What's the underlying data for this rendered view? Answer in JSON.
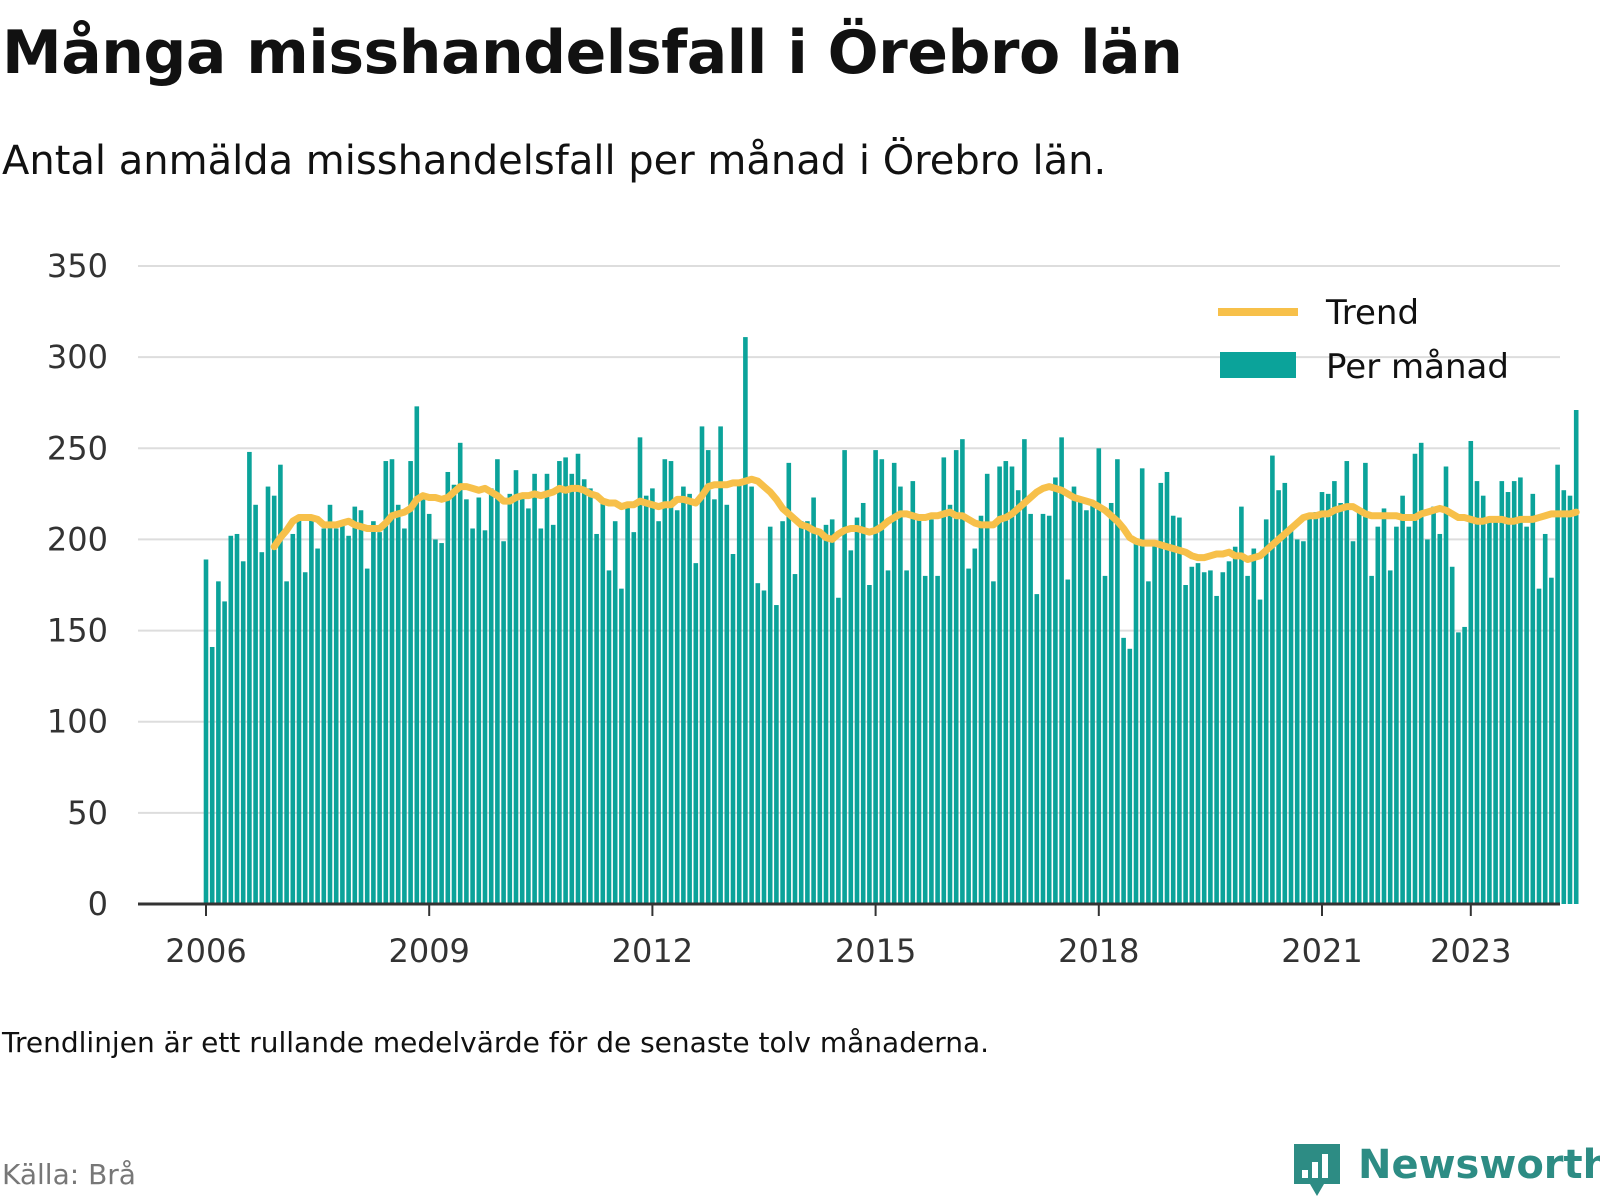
{
  "header": {
    "title": "Många misshandelsfall i Örebro län",
    "subtitle": "Antal anmälda misshandelsfall per månad i Örebro län."
  },
  "footer": {
    "note": "Trendlinjen är ett rullande medelvärde för de senaste tolv månaderna.",
    "source": "Källa: Brå",
    "brand": "Newsworthy"
  },
  "colors": {
    "bar": "#0ba39a",
    "trend": "#f7c04a",
    "grid": "#dddddd",
    "axis": "#333333",
    "brand": "#2d8c84"
  },
  "chart_data": {
    "type": "bar",
    "title": "Många misshandelsfall i Örebro län",
    "subtitle": "Antal anmälda misshandelsfall per månad i Örebro län.",
    "xlabel": "",
    "ylabel": "",
    "start_month": "2006-01",
    "ylim": [
      0,
      350
    ],
    "yticks": [
      0,
      50,
      100,
      150,
      200,
      250,
      300,
      350
    ],
    "xticks": [
      "2006",
      "2009",
      "2012",
      "2015",
      "2018",
      "2021",
      "2023"
    ],
    "grid": true,
    "legend_position": "top-right",
    "series": [
      {
        "name": "Per månad",
        "kind": "bar",
        "values": [
          189,
          141,
          177,
          166,
          202,
          203,
          188,
          248,
          219,
          193,
          229,
          224,
          241,
          177,
          203,
          212,
          182,
          211,
          195,
          206,
          219,
          206,
          208,
          202,
          218,
          216,
          184,
          210,
          204,
          243,
          244,
          219,
          206,
          243,
          273,
          225,
          214,
          200,
          198,
          237,
          230,
          253,
          222,
          206,
          223,
          205,
          228,
          244,
          199,
          225,
          238,
          224,
          217,
          236,
          206,
          236,
          208,
          243,
          245,
          236,
          247,
          233,
          228,
          203,
          222,
          183,
          210,
          173,
          220,
          204,
          256,
          224,
          228,
          210,
          244,
          243,
          216,
          229,
          225,
          187,
          262,
          249,
          222,
          262,
          219,
          192,
          232,
          311,
          229,
          176,
          172,
          207,
          164,
          210,
          242,
          181,
          210,
          210,
          223,
          205,
          208,
          211,
          168,
          249,
          194,
          212,
          220,
          175,
          249,
          244,
          183,
          242,
          229,
          183,
          232,
          211,
          180,
          211,
          180,
          245,
          219,
          249,
          255,
          184,
          195,
          213,
          236,
          177,
          240,
          243,
          240,
          227,
          255,
          214,
          170,
          214,
          213,
          234,
          256,
          178,
          229,
          221,
          216,
          219,
          250,
          180,
          220,
          244,
          146,
          140,
          198,
          239,
          177,
          199,
          231,
          237,
          213,
          212,
          175,
          185,
          187,
          182,
          183,
          169,
          182,
          188,
          196,
          218,
          180,
          195,
          167,
          211,
          246,
          227,
          231,
          205,
          200,
          199,
          212,
          215,
          226,
          225,
          232,
          220,
          243,
          199,
          216,
          242,
          180,
          207,
          217,
          183,
          207,
          224,
          207,
          247,
          253,
          200,
          218,
          203,
          240,
          185,
          149,
          152,
          254,
          232,
          224,
          211,
          212,
          232,
          226,
          232,
          234,
          207,
          225,
          173,
          203,
          179,
          241,
          227,
          224,
          271
        ]
      },
      {
        "name": "Trend",
        "kind": "line",
        "values": [
          null,
          null,
          null,
          null,
          null,
          null,
          null,
          null,
          null,
          null,
          null,
          196,
          201,
          205,
          210,
          212,
          212,
          212,
          211,
          208,
          208,
          208,
          209,
          210,
          208,
          207,
          206,
          206,
          206,
          209,
          213,
          214,
          215,
          217,
          222,
          224,
          223,
          223,
          222,
          223,
          226,
          229,
          229,
          228,
          227,
          228,
          226,
          224,
          221,
          221,
          223,
          224,
          224,
          225,
          224,
          225,
          226,
          228,
          227,
          228,
          228,
          227,
          225,
          224,
          221,
          220,
          220,
          218,
          219,
          219,
          221,
          220,
          219,
          218,
          219,
          219,
          222,
          222,
          221,
          220,
          224,
          229,
          230,
          230,
          230,
          231,
          231,
          232,
          233,
          232,
          229,
          226,
          222,
          217,
          214,
          211,
          208,
          207,
          205,
          204,
          201,
          200,
          203,
          205,
          206,
          206,
          205,
          204,
          205,
          207,
          210,
          212,
          214,
          214,
          213,
          212,
          212,
          213,
          213,
          214,
          215,
          213,
          213,
          211,
          209,
          208,
          208,
          208,
          211,
          212,
          214,
          217,
          220,
          223,
          226,
          228,
          229,
          228,
          227,
          225,
          223,
          222,
          221,
          220,
          218,
          216,
          213,
          210,
          206,
          201,
          199,
          198,
          198,
          198,
          197,
          196,
          195,
          194,
          193,
          191,
          190,
          190,
          191,
          192,
          192,
          193,
          191,
          191,
          189,
          190,
          191,
          194,
          197,
          200,
          203,
          206,
          209,
          212,
          213,
          213,
          214,
          214,
          216,
          217,
          218,
          218,
          216,
          214,
          213,
          213,
          213,
          213,
          213,
          212,
          212,
          212,
          214,
          215,
          216,
          217,
          216,
          214,
          212,
          212,
          211,
          210,
          210,
          211,
          211,
          211,
          210,
          210,
          211,
          211,
          211,
          212,
          213,
          214,
          214,
          214,
          214,
          215
        ]
      }
    ]
  }
}
